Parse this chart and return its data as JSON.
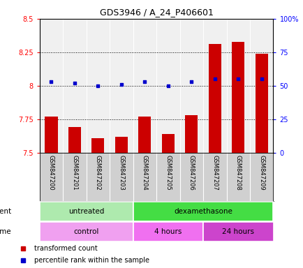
{
  "title": "GDS3946 / A_24_P406601",
  "samples": [
    "GSM847200",
    "GSM847201",
    "GSM847202",
    "GSM847203",
    "GSM847204",
    "GSM847205",
    "GSM847206",
    "GSM847207",
    "GSM847208",
    "GSM847209"
  ],
  "transformed_count": [
    7.77,
    7.69,
    7.61,
    7.62,
    7.77,
    7.64,
    7.78,
    8.31,
    8.33,
    8.24
  ],
  "percentile_rank": [
    53,
    52,
    50,
    51,
    53,
    50,
    53,
    55,
    55,
    55
  ],
  "ylim_left": [
    7.5,
    8.5
  ],
  "ylim_right": [
    0,
    100
  ],
  "yticks_left": [
    7.5,
    7.75,
    8.0,
    8.25,
    8.5
  ],
  "yticks_right": [
    0,
    25,
    50,
    75,
    100
  ],
  "ytick_labels_left": [
    "7.5",
    "7.75",
    "8",
    "8.25",
    "8.5"
  ],
  "ytick_labels_right": [
    "0",
    "25",
    "50",
    "75",
    "100%"
  ],
  "hlines": [
    7.75,
    8.0,
    8.25
  ],
  "bar_color": "#cc0000",
  "dot_color": "#0000cc",
  "bar_width": 0.55,
  "agent_groups": [
    {
      "label": "untreated",
      "start": 0,
      "end": 3,
      "color": "#aeeaae"
    },
    {
      "label": "dexamethasone",
      "start": 4,
      "end": 9,
      "color": "#44dd44"
    }
  ],
  "time_groups": [
    {
      "label": "control",
      "start": 0,
      "end": 3,
      "color": "#f0a0f0"
    },
    {
      "label": "4 hours",
      "start": 4,
      "end": 6,
      "color": "#f070f0"
    },
    {
      "label": "24 hours",
      "start": 7,
      "end": 9,
      "color": "#cc44cc"
    }
  ],
  "legend_tc_color": "#cc0000",
  "legend_pr_color": "#0000cc",
  "background_color": "#ffffff",
  "plot_bg_color": "#f0f0f0",
  "label_bg_color": "#d0d0d0"
}
